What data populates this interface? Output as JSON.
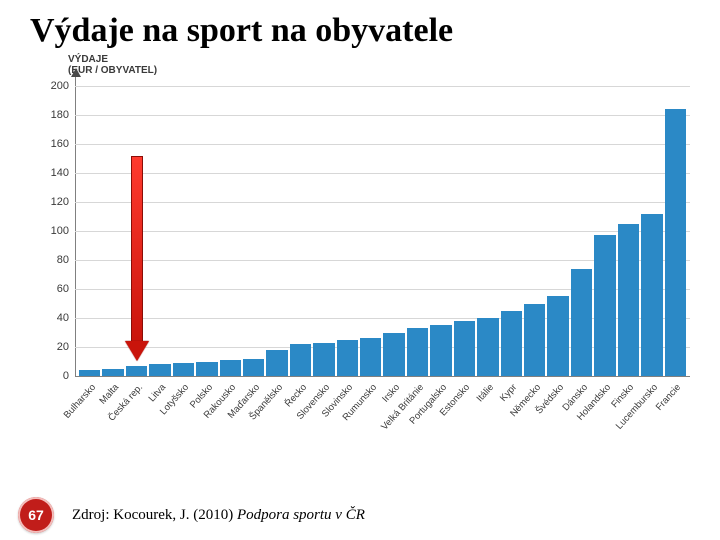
{
  "title": "Výdaje na sport na obyvatele",
  "page_number": "67",
  "source_prefix": "Zdroj: Kocourek, J. (2010) ",
  "source_italic": "Podpora sportu v ČR",
  "y_axis": {
    "label_line1": "VÝDAJE",
    "label_line2": "(EUR / OBYVATEL)",
    "ticks": [
      0,
      20,
      40,
      60,
      80,
      100,
      120,
      140,
      160,
      180,
      200
    ],
    "ymin": 0,
    "ymax": 200,
    "label_fontsize": 10,
    "tick_fontsize": 11
  },
  "chart": {
    "type": "bar",
    "bar_color": "#2b89c6",
    "grid_color": "#d7d7d7",
    "baseline_color": "#808080",
    "background": "#ffffff",
    "categories": [
      "Bulharsko",
      "Malta",
      "Česká rep.",
      "Litva",
      "Lotyšsko",
      "Polsko",
      "Rakousko",
      "Maďarsko",
      "Španělsko",
      "Řecko",
      "Slovensko",
      "Slovinsko",
      "Rumunsko",
      "Irsko",
      "Velká Británie",
      "Portugalsko",
      "Estonsko",
      "Itálie",
      "Kypr",
      "Německo",
      "Švédsko",
      "Dánsko",
      "Holandsko",
      "Finsko",
      "Lucembursko",
      "Francie"
    ],
    "values": [
      4,
      5,
      7,
      8,
      9,
      10,
      11,
      12,
      18,
      22,
      23,
      25,
      26,
      30,
      33,
      35,
      38,
      40,
      45,
      50,
      55,
      74,
      97,
      105,
      112,
      184
    ]
  },
  "highlight_arrow": {
    "target_index": 2,
    "shaft_color_top": "#ff3a2e",
    "shaft_color_bottom": "#c9140b",
    "border_color": "#8a0d07"
  }
}
